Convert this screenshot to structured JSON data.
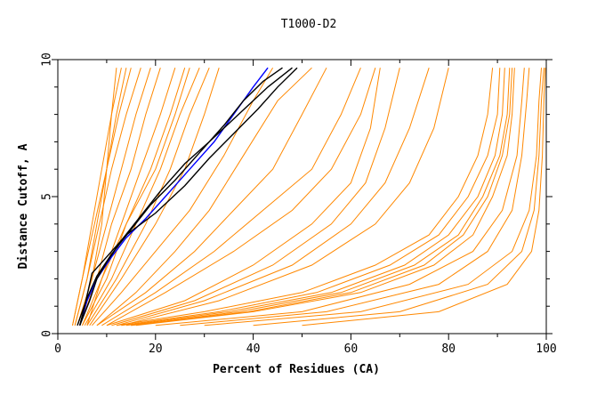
{
  "chart_data": {
    "type": "line",
    "title": "T1000-D2",
    "xlabel": "Percent of Residues (CA)",
    "ylabel": "Distance Cutoff, A",
    "xlim": [
      0,
      100
    ],
    "ylim": [
      0,
      10
    ],
    "x_ticks": [
      "0",
      "20",
      "40",
      "60",
      "80",
      "100"
    ],
    "y_ticks": [
      "0",
      "5",
      "10"
    ],
    "grid": false,
    "colors": {
      "orange": "#ff8800",
      "blue": "#0000ff",
      "black": "#000000"
    },
    "series": [
      {
        "color": "blue",
        "x": [
          4.5,
          6,
          8,
          11,
          14,
          18,
          22,
          27,
          32,
          36,
          40,
          43
        ],
        "y": [
          0.3,
          1.2,
          2.0,
          2.8,
          3.5,
          4.2,
          5.0,
          6.0,
          7.0,
          8.0,
          9.0,
          9.7
        ]
      },
      {
        "color": "black",
        "x": [
          4.5,
          6.5,
          8,
          10,
          13,
          17,
          21,
          26,
          31,
          37,
          43,
          48
        ],
        "y": [
          0.3,
          1.2,
          2.0,
          2.6,
          3.4,
          4.3,
          5.2,
          6.2,
          7.0,
          8.0,
          9.0,
          9.7
        ]
      },
      {
        "color": "black",
        "x": [
          4.5,
          5.5,
          7,
          10,
          14,
          20,
          26,
          31,
          36,
          41,
          45,
          49
        ],
        "y": [
          0.3,
          1.0,
          2.2,
          2.8,
          3.6,
          4.4,
          5.4,
          6.4,
          7.3,
          8.2,
          9.0,
          9.7
        ]
      },
      {
        "color": "black",
        "x": [
          4.0,
          6,
          8,
          11,
          15,
          19,
          24,
          29,
          34,
          38,
          42,
          46
        ],
        "y": [
          0.3,
          1.3,
          2.1,
          2.9,
          3.8,
          4.7,
          5.6,
          6.6,
          7.6,
          8.5,
          9.2,
          9.7
        ]
      },
      {
        "color": "orange",
        "x": [
          3.0,
          5,
          7,
          9,
          11,
          13
        ],
        "y": [
          0.3,
          2,
          4,
          6,
          8,
          9.7
        ]
      },
      {
        "color": "orange",
        "x": [
          3.0,
          5,
          7.5,
          10,
          12.5,
          15
        ],
        "y": [
          0.3,
          2,
          4,
          6,
          8,
          9.7
        ]
      },
      {
        "color": "orange",
        "x": [
          3.5,
          6,
          8.5,
          11,
          14,
          17
        ],
        "y": [
          0.3,
          2,
          4,
          6,
          8,
          9.7
        ]
      },
      {
        "color": "orange",
        "x": [
          4.0,
          7,
          10,
          13,
          16,
          19
        ],
        "y": [
          0.3,
          2,
          4,
          6,
          8,
          9.7
        ]
      },
      {
        "color": "orange",
        "x": [
          4.5,
          8,
          11,
          15,
          18,
          21
        ],
        "y": [
          0.3,
          2,
          4,
          6,
          8,
          9.7
        ]
      },
      {
        "color": "orange",
        "x": [
          5.0,
          9,
          13,
          17,
          21,
          24
        ],
        "y": [
          0.3,
          2,
          4,
          6,
          8,
          9.7
        ]
      },
      {
        "color": "orange",
        "x": [
          5.0,
          10,
          14,
          19,
          23,
          26
        ],
        "y": [
          0.3,
          2,
          4,
          6,
          8,
          9.7
        ]
      },
      {
        "color": "orange",
        "x": [
          5.5,
          11,
          16,
          21,
          25,
          29
        ],
        "y": [
          0.3,
          2,
          4,
          6,
          8,
          9.7
        ]
      },
      {
        "color": "orange",
        "x": [
          6.0,
          12,
          18,
          23,
          27,
          31
        ],
        "y": [
          0.3,
          2,
          4,
          6,
          8,
          9.7
        ]
      },
      {
        "color": "orange",
        "x": [
          6.5,
          13,
          20,
          26,
          30,
          33
        ],
        "y": [
          0.3,
          2,
          4,
          6,
          8,
          9.7
        ]
      },
      {
        "color": "orange",
        "x": [
          4.0,
          7,
          9,
          10,
          11,
          12
        ],
        "y": [
          0.3,
          2,
          4,
          6,
          8,
          9.7
        ]
      },
      {
        "color": "orange",
        "x": [
          3.5,
          6,
          8,
          10,
          12,
          14
        ],
        "y": [
          0.3,
          2,
          4,
          6,
          8,
          9.7
        ]
      },
      {
        "color": "orange",
        "x": [
          6.0,
          9,
          14,
          20,
          24,
          27
        ],
        "y": [
          0.3,
          2,
          4,
          6,
          8,
          9.7
        ]
      },
      {
        "color": "orange",
        "x": [
          7,
          13,
          20,
          27,
          34,
          40,
          44
        ],
        "y": [
          0.3,
          1.5,
          3,
          4.5,
          6.5,
          8.5,
          9.7
        ]
      },
      {
        "color": "orange",
        "x": [
          8,
          16,
          24,
          31,
          38,
          45,
          52
        ],
        "y": [
          0.3,
          1.5,
          3,
          4.5,
          6.5,
          8.5,
          9.7
        ]
      },
      {
        "color": "orange",
        "x": [
          8,
          18,
          28,
          36,
          44,
          50,
          55
        ],
        "y": [
          0.3,
          1.5,
          3,
          4.5,
          6,
          8,
          9.7
        ]
      },
      {
        "color": "orange",
        "x": [
          9,
          20,
          32,
          42,
          52,
          58,
          62
        ],
        "y": [
          0.3,
          1.5,
          3,
          4.5,
          6,
          8,
          9.7
        ]
      },
      {
        "color": "orange",
        "x": [
          10,
          22,
          36,
          48,
          56,
          62,
          65
        ],
        "y": [
          0.3,
          1.5,
          3,
          4.5,
          6,
          8,
          9.7
        ]
      },
      {
        "color": "orange",
        "x": [
          10,
          26,
          40,
          52,
          60,
          64,
          66
        ],
        "y": [
          0.3,
          1.2,
          2.5,
          4,
          5.5,
          7.5,
          9.7
        ]
      },
      {
        "color": "orange",
        "x": [
          11,
          28,
          44,
          56,
          63,
          67,
          70
        ],
        "y": [
          0.3,
          1.2,
          2.5,
          4,
          5.5,
          7.5,
          9.7
        ]
      },
      {
        "color": "orange",
        "x": [
          12,
          30,
          48,
          60,
          67,
          72,
          76
        ],
        "y": [
          0.3,
          1.2,
          2.5,
          4,
          5.5,
          7.5,
          9.7
        ]
      },
      {
        "color": "orange",
        "x": [
          13,
          33,
          52,
          65,
          72,
          77,
          80
        ],
        "y": [
          0.3,
          1.2,
          2.5,
          4,
          5.5,
          7.5,
          9.7
        ]
      },
      {
        "color": "orange",
        "x": [
          12,
          30,
          50,
          65,
          76,
          82,
          86,
          88,
          89
        ],
        "y": [
          0.3,
          0.8,
          1.5,
          2.5,
          3.6,
          5,
          6.5,
          8,
          9.7
        ]
      },
      {
        "color": "orange",
        "x": [
          13,
          33,
          53,
          68,
          78,
          84,
          88,
          90,
          90.5
        ],
        "y": [
          0.3,
          0.8,
          1.5,
          2.5,
          3.6,
          5,
          6.5,
          8,
          9.7
        ]
      },
      {
        "color": "orange",
        "x": [
          14,
          35,
          56,
          71,
          80,
          86,
          89.5,
          91,
          91.5
        ],
        "y": [
          0.3,
          0.8,
          1.5,
          2.5,
          3.6,
          5,
          6.5,
          8,
          9.7
        ]
      },
      {
        "color": "orange",
        "x": [
          15,
          37,
          58,
          73,
          82,
          87,
          90.5,
          92,
          92.5
        ],
        "y": [
          0.3,
          0.8,
          1.5,
          2.5,
          3.6,
          5,
          6.5,
          8,
          9.7
        ]
      },
      {
        "color": "orange",
        "x": [
          15,
          39,
          60,
          75,
          83,
          88,
          91,
          92.5,
          93
        ],
        "y": [
          0.3,
          0.8,
          1.5,
          2.5,
          3.6,
          5,
          6.5,
          8,
          9.7
        ]
      },
      {
        "color": "orange",
        "x": [
          16,
          40,
          62,
          77,
          85,
          89,
          92,
          93,
          93.5
        ],
        "y": [
          0.3,
          0.8,
          1.5,
          2.5,
          3.6,
          5,
          6.5,
          8,
          9.7
        ]
      },
      {
        "color": "orange",
        "x": [
          20,
          50,
          72,
          85,
          91,
          94,
          95,
          95.5
        ],
        "y": [
          0.3,
          0.8,
          1.8,
          3,
          4.5,
          6.5,
          8.5,
          9.7
        ]
      },
      {
        "color": "orange",
        "x": [
          25,
          55,
          78,
          88,
          93,
          95,
          96,
          96.5
        ],
        "y": [
          0.3,
          0.8,
          1.8,
          3,
          4.5,
          6.5,
          8.5,
          9.7
        ]
      },
      {
        "color": "orange",
        "x": [
          30,
          62,
          84,
          93,
          96.5,
          98,
          98.5,
          99
        ],
        "y": [
          0.3,
          0.8,
          1.8,
          3,
          4.5,
          6.5,
          8.5,
          9.7
        ]
      },
      {
        "color": "orange",
        "x": [
          40,
          70,
          88,
          95,
          97.5,
          98.5,
          99,
          99.5
        ],
        "y": [
          0.3,
          0.8,
          1.8,
          3,
          4.5,
          6.5,
          8.5,
          9.7
        ]
      },
      {
        "color": "orange",
        "x": [
          50,
          78,
          92,
          97,
          98.5,
          99.2,
          99.5,
          99.8
        ],
        "y": [
          0.3,
          0.8,
          1.8,
          3,
          4.5,
          6.5,
          8.5,
          9.7
        ]
      }
    ]
  }
}
